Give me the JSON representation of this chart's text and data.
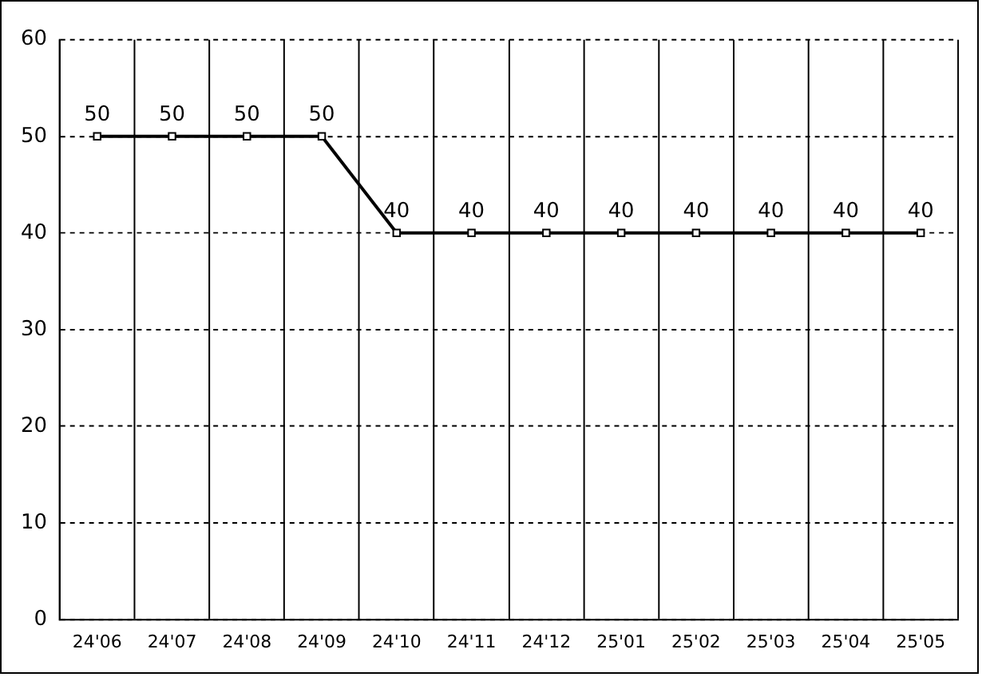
{
  "chart_data": {
    "type": "line",
    "categories": [
      "24'06",
      "24'07",
      "24'08",
      "24'09",
      "24'10",
      "24'11",
      "24'12",
      "25'01",
      "25'02",
      "25'03",
      "25'04",
      "25'05"
    ],
    "series": [
      {
        "color": "#000000",
        "values": [
          50,
          50,
          50,
          50,
          40,
          40,
          40,
          40,
          40,
          40,
          40,
          40
        ]
      }
    ],
    "ylim": [
      0,
      60
    ],
    "yticks": [
      0,
      10,
      20,
      30,
      40,
      50,
      60
    ],
    "grid": true,
    "legend": false,
    "marker": "square",
    "line_style": "solid",
    "data_labels": true
  }
}
